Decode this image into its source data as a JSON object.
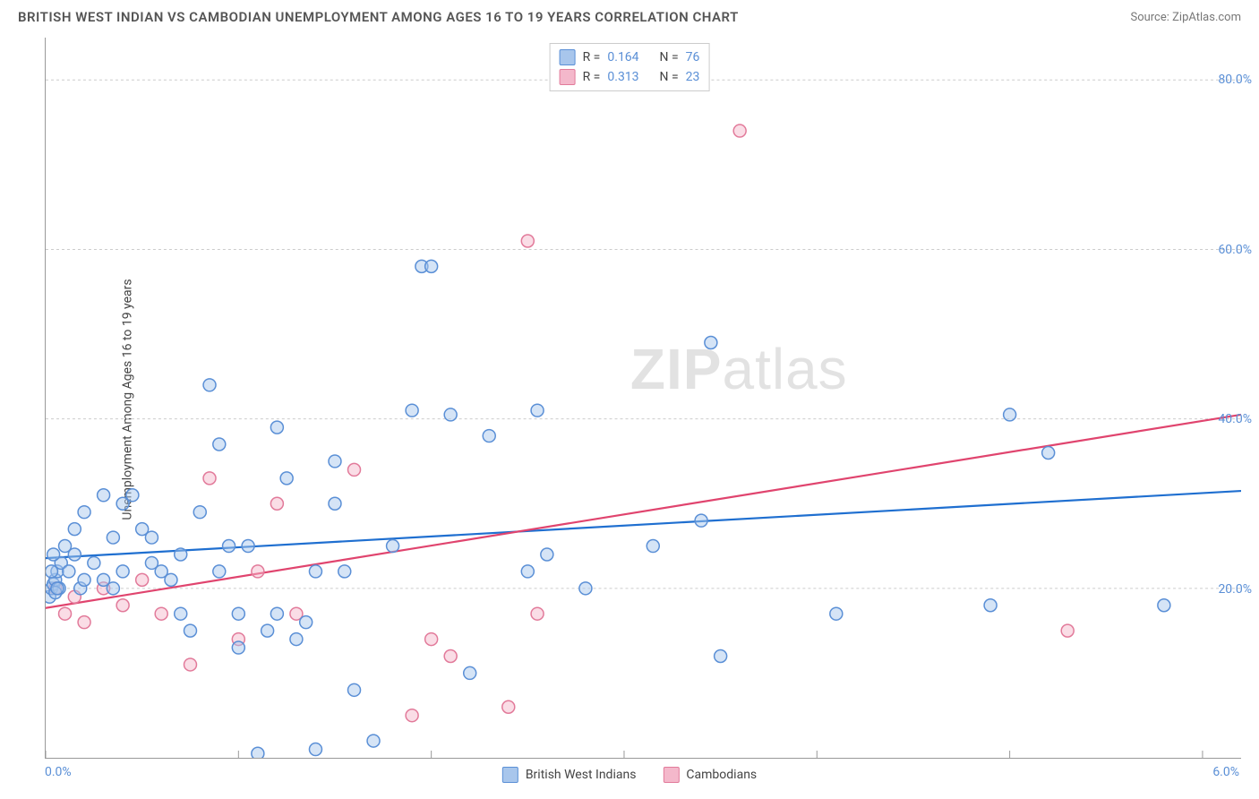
{
  "header": {
    "title": "BRITISH WEST INDIAN VS CAMBODIAN UNEMPLOYMENT AMONG AGES 16 TO 19 YEARS CORRELATION CHART",
    "source": "Source: ZipAtlas.com"
  },
  "ylabel": "Unemployment Among Ages 16 to 19 years",
  "watermark": {
    "bold": "ZIP",
    "light": "atlas"
  },
  "chart": {
    "type": "scatter",
    "xlim": [
      0,
      6.2
    ],
    "ylim": [
      0,
      85
    ],
    "xticks": [
      {
        "v": 0.0,
        "label": "0.0%"
      },
      {
        "v": 1.0,
        "label": ""
      },
      {
        "v": 2.0,
        "label": ""
      },
      {
        "v": 3.0,
        "label": ""
      },
      {
        "v": 4.0,
        "label": ""
      },
      {
        "v": 5.0,
        "label": ""
      },
      {
        "v": 6.0,
        "label": "6.0%"
      }
    ],
    "yticks": [
      {
        "v": 20,
        "label": "20.0%"
      },
      {
        "v": 40,
        "label": "40.0%"
      },
      {
        "v": 60,
        "label": "60.0%"
      },
      {
        "v": 80,
        "label": "80.0%"
      }
    ],
    "grid_color": "#cccccc",
    "background_color": "#ffffff",
    "marker_radius": 7,
    "marker_stroke_width": 1.5,
    "marker_fill_opacity": 0.18,
    "line_width": 2.2
  },
  "series": {
    "bwi": {
      "label": "British West Indians",
      "color_stroke": "#5a8fd6",
      "color_fill": "#a8c6ec",
      "line_color": "#1f6fd0",
      "R": "0.164",
      "N": "76",
      "regression": {
        "x1": -0.05,
        "y1": 23.5,
        "x2": 6.2,
        "y2": 31.5
      },
      "points": [
        [
          0.02,
          19
        ],
        [
          0.03,
          20
        ],
        [
          0.04,
          20.5
        ],
        [
          0.05,
          21
        ],
        [
          0.06,
          22
        ],
        [
          0.07,
          20
        ],
        [
          0.08,
          23
        ],
        [
          0.1,
          25
        ],
        [
          0.05,
          19.5
        ],
        [
          0.03,
          22
        ],
        [
          0.04,
          24
        ],
        [
          0.06,
          20
        ],
        [
          0.12,
          22
        ],
        [
          0.15,
          24
        ],
        [
          0.18,
          20
        ],
        [
          0.2,
          21
        ],
        [
          0.25,
          23
        ],
        [
          0.3,
          31
        ],
        [
          0.35,
          20
        ],
        [
          0.4,
          22
        ],
        [
          0.45,
          31
        ],
        [
          0.5,
          27
        ],
        [
          0.55,
          23
        ],
        [
          0.6,
          22
        ],
        [
          0.65,
          21
        ],
        [
          0.7,
          17
        ],
        [
          0.75,
          15
        ],
        [
          0.8,
          29
        ],
        [
          0.85,
          44
        ],
        [
          0.9,
          37
        ],
        [
          0.95,
          25
        ],
        [
          1.0,
          17
        ],
        [
          1.05,
          25
        ],
        [
          1.1,
          0.5
        ],
        [
          1.15,
          15
        ],
        [
          1.2,
          39
        ],
        [
          1.25,
          33
        ],
        [
          1.3,
          14
        ],
        [
          1.35,
          16
        ],
        [
          1.4,
          1
        ],
        [
          1.5,
          30
        ],
        [
          1.55,
          22
        ],
        [
          1.6,
          8
        ],
        [
          1.7,
          2
        ],
        [
          1.8,
          25
        ],
        [
          1.9,
          41
        ],
        [
          1.95,
          58
        ],
        [
          2.0,
          58
        ],
        [
          2.1,
          40.5
        ],
        [
          2.2,
          10
        ],
        [
          2.3,
          38
        ],
        [
          2.5,
          22
        ],
        [
          2.6,
          24
        ],
        [
          2.55,
          41
        ],
        [
          2.8,
          20
        ],
        [
          3.15,
          25
        ],
        [
          3.4,
          28
        ],
        [
          3.5,
          12
        ],
        [
          3.45,
          49
        ],
        [
          4.1,
          17
        ],
        [
          4.9,
          18
        ],
        [
          5.0,
          40.5
        ],
        [
          5.2,
          36
        ],
        [
          5.8,
          18
        ],
        [
          0.15,
          27
        ],
        [
          0.2,
          29
        ],
        [
          0.3,
          21
        ],
        [
          0.35,
          26
        ],
        [
          0.4,
          30
        ],
        [
          0.55,
          26
        ],
        [
          0.7,
          24
        ],
        [
          0.9,
          22
        ],
        [
          1.0,
          13
        ],
        [
          1.2,
          17
        ],
        [
          1.4,
          22
        ],
        [
          1.5,
          35
        ]
      ]
    },
    "cam": {
      "label": "Cambodians",
      "color_stroke": "#e27a9a",
      "color_fill": "#f4b8cb",
      "line_color": "#e0446e",
      "R": "0.313",
      "N": "23",
      "regression": {
        "x1": -0.05,
        "y1": 17.5,
        "x2": 6.2,
        "y2": 40.5
      },
      "points": [
        [
          0.05,
          20
        ],
        [
          0.1,
          17
        ],
        [
          0.15,
          19
        ],
        [
          0.2,
          16
        ],
        [
          0.3,
          20
        ],
        [
          0.4,
          18
        ],
        [
          0.5,
          21
        ],
        [
          0.6,
          17
        ],
        [
          0.75,
          11
        ],
        [
          0.85,
          33
        ],
        [
          1.0,
          14
        ],
        [
          1.1,
          22
        ],
        [
          1.2,
          30
        ],
        [
          1.3,
          17
        ],
        [
          1.6,
          34
        ],
        [
          1.9,
          5
        ],
        [
          2.0,
          14
        ],
        [
          2.1,
          12
        ],
        [
          2.4,
          6
        ],
        [
          2.5,
          61
        ],
        [
          2.55,
          17
        ],
        [
          3.6,
          74
        ],
        [
          5.3,
          15
        ]
      ]
    }
  },
  "legend_top": {
    "R_label": "R =",
    "N_label": "N ="
  }
}
